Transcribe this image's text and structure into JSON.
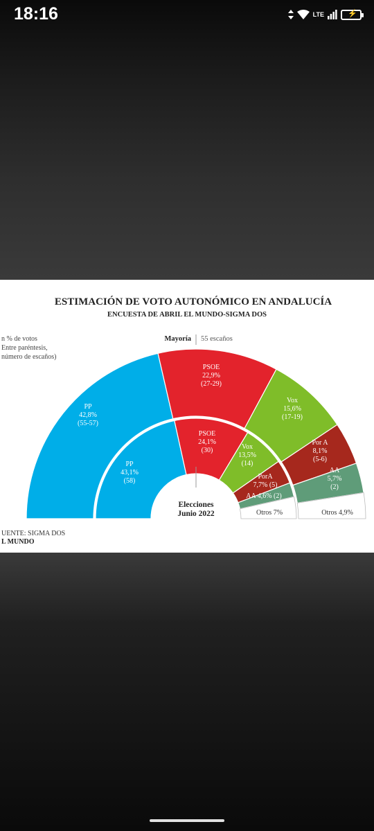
{
  "status_bar": {
    "time": "18:16",
    "network": "LTE"
  },
  "chart_data": {
    "type": "semicircle-donut",
    "title": "ESTIMACIÓN DE VOTO AUTONÓMICO EN ANDALUCÍA",
    "subtitle": "ENCUESTA DE ABRIL EL MUNDO-SIGMA DOS",
    "units_note": [
      "n % de votos",
      "Entre paréntesis,",
      "número de escaños)"
    ],
    "majority": {
      "label": "Mayoría",
      "value": "55 escaños"
    },
    "source": [
      "UENTE: SIGMA DOS",
      "L MUNDO"
    ],
    "colors": {
      "PP": "#00aee8",
      "PSOE": "#e3232c",
      "Vox": "#7fbd29",
      "Por A": "#a6281d",
      "AA": "#5f9c79",
      "Otros": "#ffffff"
    },
    "series": [
      {
        "name": "Encuesta de abril",
        "ring": "outer",
        "slices": [
          {
            "party": "PP",
            "label": "PP",
            "percent": 42.8,
            "pct_label": "42,8%",
            "seats_label": "(55-57)"
          },
          {
            "party": "PSOE",
            "label": "PSOE",
            "percent": 22.9,
            "pct_label": "22,9%",
            "seats_label": "(27-29)"
          },
          {
            "party": "Vox",
            "label": "Vox",
            "percent": 15.6,
            "pct_label": "15,6%",
            "seats_label": "(17-19)"
          },
          {
            "party": "Por A",
            "label": "Por A",
            "percent": 8.1,
            "pct_label": "8,1%",
            "seats_label": "(5-6)"
          },
          {
            "party": "AA",
            "label": "AA",
            "percent": 5.7,
            "pct_label": "5,7%",
            "seats_label": "(2)"
          },
          {
            "party": "Otros",
            "label": "Otros 4,9%",
            "percent": 4.9,
            "pct_label": "",
            "seats_label": ""
          }
        ]
      },
      {
        "name": "Elecciones Junio 2022",
        "ring": "inner",
        "center_label": [
          "Elecciones",
          "Junio 2022"
        ],
        "slices": [
          {
            "party": "PP",
            "label": "PP",
            "percent": 43.1,
            "pct_label": "43,1%",
            "seats_label": "(58)"
          },
          {
            "party": "PSOE",
            "label": "PSOE",
            "percent": 24.1,
            "pct_label": "24,1%",
            "seats_label": "(30)"
          },
          {
            "party": "Vox",
            "label": "Vox",
            "percent": 13.5,
            "pct_label": "13,5%",
            "seats_label": "(14)"
          },
          {
            "party": "Por A",
            "label": "PorA",
            "percent": 7.7,
            "pct_label": "7,7% (5)",
            "seats_label": ""
          },
          {
            "party": "AA",
            "label": "AA 4,6% (2)",
            "percent": 4.6,
            "pct_label": "",
            "seats_label": ""
          },
          {
            "party": "Otros",
            "label": "Otros 7%",
            "percent": 7.0,
            "pct_label": "",
            "seats_label": ""
          }
        ]
      }
    ]
  }
}
